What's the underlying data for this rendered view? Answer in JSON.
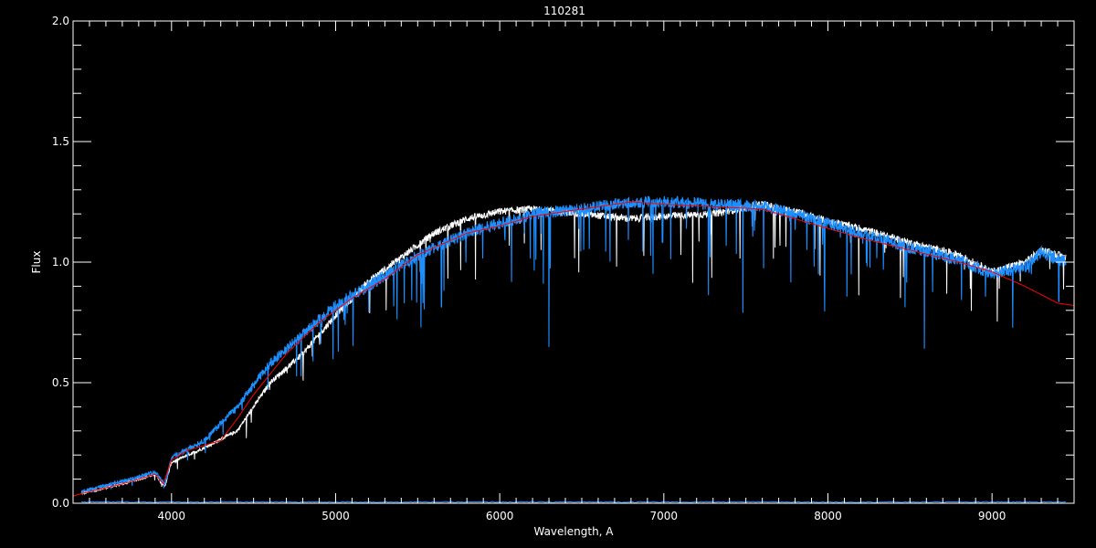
{
  "chart_data": {
    "type": "line",
    "title": "110281",
    "xlabel": "Wavelength, A",
    "ylabel": "Flux",
    "xlim": [
      3400,
      9500
    ],
    "ylim": [
      0.0,
      2.0
    ],
    "x_ticks": [
      4000,
      5000,
      6000,
      7000,
      8000,
      9000
    ],
    "x_tick_labels": [
      "4000",
      "5000",
      "6000",
      "7000",
      "8000",
      "9000"
    ],
    "y_ticks": [
      0.0,
      0.5,
      1.0,
      1.5,
      2.0
    ],
    "y_tick_labels": [
      "0.0",
      "0.5",
      "1.0",
      "1.5",
      "2.0"
    ],
    "grid": false,
    "background": "#000000",
    "series": [
      {
        "color": "#ffffff",
        "x": [
          3450,
          3700,
          3900,
          3960,
          4000,
          4200,
          4400,
          4600,
          4800,
          5000,
          5200,
          5400,
          5600,
          5800,
          6000,
          6200,
          6500,
          6800,
          7000,
          7300,
          7600,
          7800,
          8000,
          8200,
          8500,
          8800,
          9000,
          9200,
          9300,
          9450
        ],
        "y": [
          0.04,
          0.08,
          0.12,
          0.07,
          0.17,
          0.23,
          0.3,
          0.5,
          0.62,
          0.78,
          0.92,
          1.02,
          1.12,
          1.18,
          1.21,
          1.22,
          1.2,
          1.18,
          1.19,
          1.2,
          1.24,
          1.21,
          1.17,
          1.14,
          1.08,
          1.03,
          0.96,
          1.0,
          1.05,
          1.02
        ]
      },
      {
        "color": "#1e8fff",
        "x": [
          3450,
          3700,
          3900,
          3960,
          4000,
          4200,
          4400,
          4600,
          4800,
          5000,
          5200,
          5400,
          5600,
          5800,
          6000,
          6200,
          6500,
          6800,
          7000,
          7300,
          7600,
          7800,
          8000,
          8200,
          8500,
          8800,
          9000,
          9200,
          9300,
          9450
        ],
        "y": [
          0.05,
          0.09,
          0.13,
          0.08,
          0.19,
          0.26,
          0.4,
          0.58,
          0.7,
          0.82,
          0.9,
          0.99,
          1.06,
          1.12,
          1.16,
          1.2,
          1.22,
          1.25,
          1.25,
          1.24,
          1.23,
          1.2,
          1.16,
          1.12,
          1.06,
          1.01,
          0.95,
          0.98,
          1.04,
          1.0
        ]
      },
      {
        "color": "#ff0000",
        "x": [
          3400,
          3450,
          3700,
          3900,
          3950,
          4000,
          4100,
          4300,
          4400,
          4500,
          4700,
          4900,
          5100,
          5300,
          5500,
          5800,
          6000,
          6200,
          6500,
          6800,
          7000,
          7300,
          7600,
          7800,
          8000,
          8200,
          8500,
          8800,
          9000,
          9200,
          9400,
          9500
        ],
        "y": [
          0.03,
          0.04,
          0.08,
          0.12,
          0.08,
          0.18,
          0.22,
          0.26,
          0.35,
          0.45,
          0.62,
          0.75,
          0.85,
          0.93,
          1.03,
          1.12,
          1.15,
          1.19,
          1.22,
          1.25,
          1.24,
          1.23,
          1.22,
          1.18,
          1.14,
          1.1,
          1.05,
          1.0,
          0.96,
          0.9,
          0.83,
          0.82
        ]
      },
      {
        "color": "#1e8fff",
        "x": [
          3450,
          9450
        ],
        "y": [
          0.005,
          0.005
        ]
      }
    ]
  }
}
